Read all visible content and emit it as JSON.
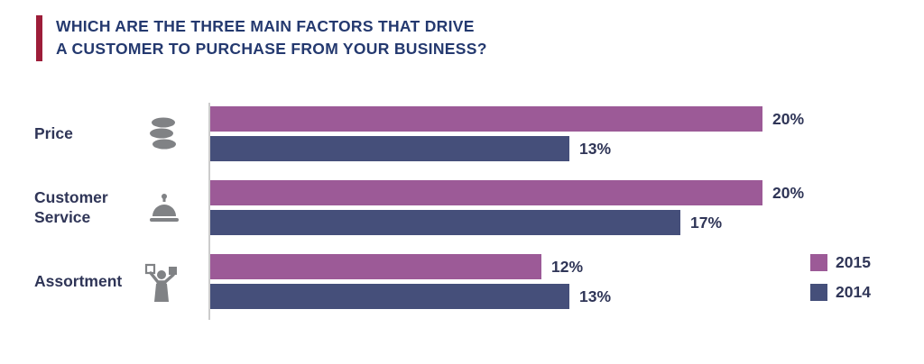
{
  "title": {
    "line1": "WHICH ARE THE THREE MAIN FACTORS THAT DRIVE",
    "line2": "A CUSTOMER TO PURCHASE FROM YOUR BUSINESS?"
  },
  "colors": {
    "title_text": "#24396f",
    "accent_bar": "#9d1d39",
    "series_2015": "#9c5a97",
    "series_2014": "#454f7a",
    "icon_gray": "#808285",
    "axis_line": "#cccccc",
    "value_text": "#2f3557"
  },
  "chart_data": {
    "type": "bar",
    "orientation": "horizontal",
    "title": "Which are the three main factors that drive a customer to purchase from your business?",
    "categories": [
      "Price",
      "Customer Service",
      "Assortment"
    ],
    "category_icons": [
      "coins-icon",
      "service-bell-icon",
      "assortment-icon"
    ],
    "series": [
      {
        "name": "2015",
        "color": "#9c5a97",
        "values": [
          20,
          20,
          12
        ]
      },
      {
        "name": "2014",
        "color": "#454f7a",
        "values": [
          13,
          17,
          13
        ]
      }
    ],
    "value_suffix": "%",
    "xlim": [
      0,
      21
    ],
    "grid": false,
    "legend_position": "bottom-right"
  }
}
